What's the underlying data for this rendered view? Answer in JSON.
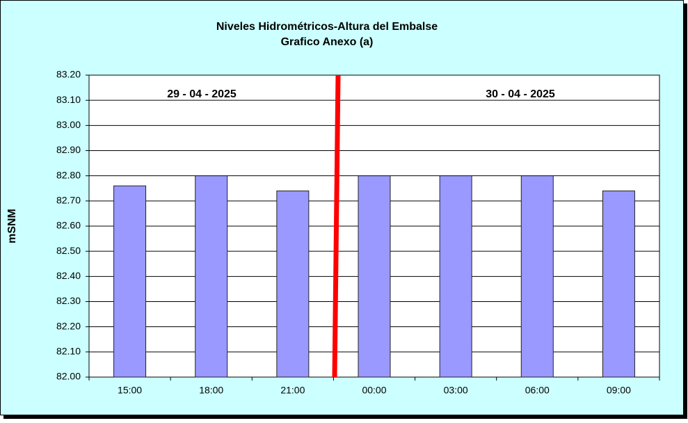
{
  "chart_data": {
    "type": "bar",
    "title": "Niveles Hidrométricos-Altura del Embalse",
    "subtitle": "Grafico Anexo (a)",
    "y_label": "mSNM",
    "annotations": [
      "29 - 04 - 2025",
      "30 - 04 - 2025"
    ],
    "categories": [
      "15:00",
      "18:00",
      "21:00",
      "00:00",
      "03:00",
      "06:00",
      "09:00"
    ],
    "values": [
      82.76,
      82.8,
      82.74,
      82.8,
      82.8,
      82.8,
      82.74
    ],
    "color": "#9999ff",
    "ylim": [
      82.0,
      83.2
    ],
    "yticks": [
      {
        "value": 82.0,
        "label": "82.00"
      },
      {
        "value": 82.1,
        "label": "82.10"
      },
      {
        "value": 82.2,
        "label": "82.20"
      },
      {
        "value": 82.3,
        "label": "82.30"
      },
      {
        "value": 82.4,
        "label": "82.40"
      },
      {
        "value": 82.5,
        "label": "82.50"
      },
      {
        "value": 82.6,
        "label": "82.60"
      },
      {
        "value": 82.7,
        "label": "82.70"
      },
      {
        "value": 82.8,
        "label": "82.80"
      },
      {
        "value": 82.9,
        "label": "82.90"
      },
      {
        "value": 83.0,
        "label": "83.00"
      },
      {
        "value": 83.1,
        "label": "83.10"
      },
      {
        "value": 83.2,
        "label": "83.20"
      }
    ],
    "grid": true
  }
}
